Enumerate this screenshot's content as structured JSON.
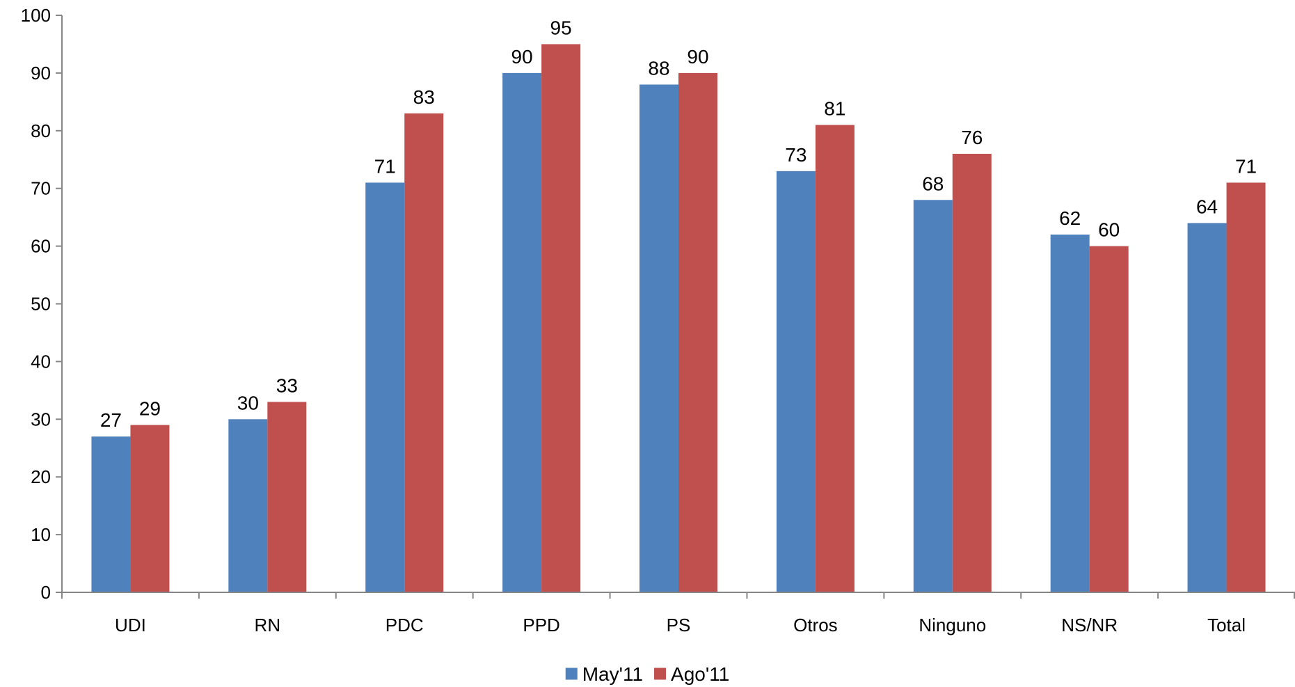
{
  "chart_data": {
    "type": "bar",
    "title": "",
    "xlabel": "",
    "ylabel": "",
    "categories": [
      "UDI",
      "RN",
      "PDC",
      "PPD",
      "PS",
      "Otros",
      "Ninguno",
      "NS/NR",
      "Total"
    ],
    "series": [
      {
        "name": "May'11",
        "color": "#4F81BD",
        "values": [
          27,
          30,
          71,
          90,
          88,
          73,
          68,
          62,
          64
        ]
      },
      {
        "name": "Ago'11",
        "color": "#C0504D",
        "values": [
          29,
          33,
          83,
          95,
          90,
          81,
          76,
          60,
          71
        ]
      }
    ],
    "ylim": [
      0,
      100
    ],
    "yticks": [
      0,
      10,
      20,
      30,
      40,
      50,
      60,
      70,
      80,
      90,
      100
    ],
    "grid": false,
    "data_labels": true,
    "legend_position": "bottom-center"
  }
}
